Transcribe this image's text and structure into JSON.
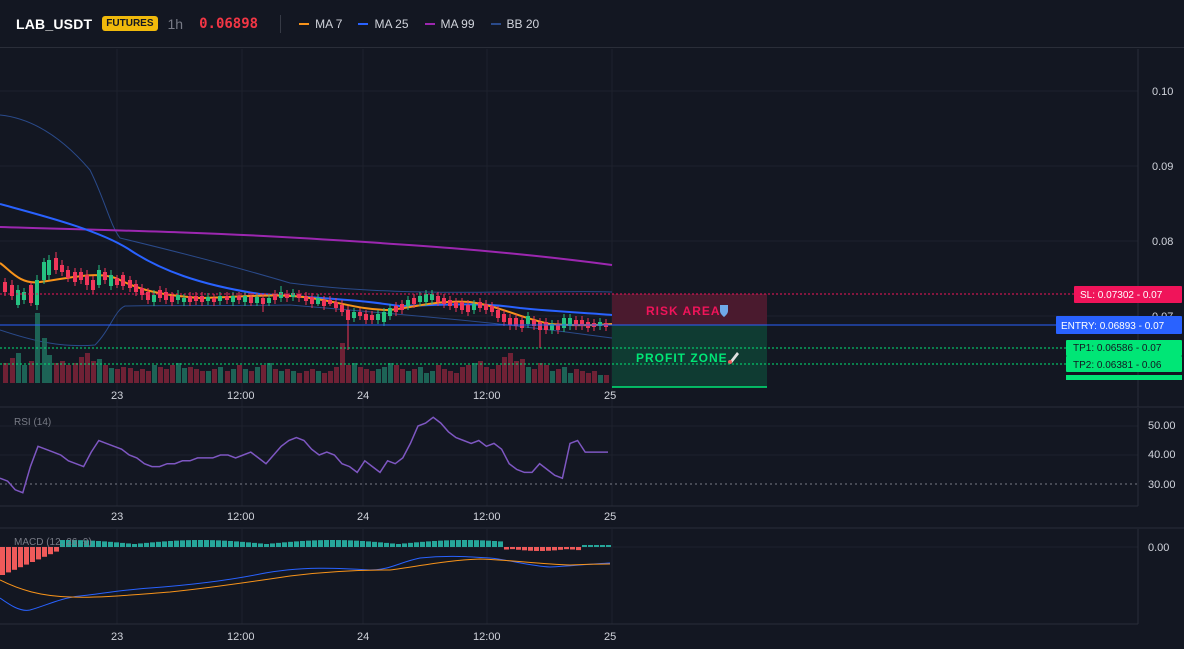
{
  "header": {
    "symbol": "LAB_USDT",
    "badge": "FUTURES",
    "timeframe": "1h",
    "price": "0.06898",
    "legend": [
      {
        "label": "MA 7",
        "color": "#f7931a"
      },
      {
        "label": "MA 25",
        "color": "#2962ff"
      },
      {
        "label": "MA 99",
        "color": "#9c27b0"
      },
      {
        "label": "BB 20",
        "color": "#2a4a8a"
      }
    ]
  },
  "main_pane": {
    "y_ticks": [
      "0.10",
      "0.09",
      "0.08",
      "0.07"
    ],
    "x_ticks": [
      "23",
      "12:00",
      "24",
      "12:00",
      "25"
    ],
    "zones": {
      "risk": "RISK AREA",
      "risk_icon": "shield-icon",
      "profit": "PROFIT ZONE",
      "profit_icon": "rocket-icon"
    },
    "tags": {
      "sl": "SL: 0.07302 - 0.07",
      "entry": "ENTRY: 0.06893 - 0.07",
      "tp1": "TP1: 0.06586 - 0.07",
      "tp2": "TP2: 0.06381 - 0.06"
    },
    "colors": {
      "up": "#26c281",
      "down": "#f0365a",
      "sl": "#f0145a",
      "entry": "#2962ff",
      "tp": "#00e676"
    }
  },
  "rsi_pane": {
    "label": "RSI (14)",
    "y_ticks": [
      "50.00",
      "40.00",
      "30.00"
    ],
    "x_ticks": [
      "23",
      "12:00",
      "24",
      "12:00",
      "25"
    ],
    "color": "#7e57c2",
    "values": [
      32,
      31,
      28,
      27,
      36,
      43,
      42,
      41,
      40,
      38,
      37,
      36,
      41,
      45,
      44,
      43,
      42,
      40,
      39,
      37,
      36,
      36,
      37,
      37,
      38,
      38,
      39,
      39,
      39,
      40,
      40,
      39,
      40,
      41,
      39,
      37,
      40,
      43,
      45,
      46,
      45,
      42,
      40,
      41,
      40,
      37,
      36,
      34,
      38,
      36,
      34,
      38,
      37,
      39,
      44,
      50,
      51,
      53,
      51,
      48,
      46,
      45,
      44,
      45,
      43,
      44,
      42,
      37,
      35,
      34,
      34,
      37,
      35,
      33,
      32,
      44,
      45,
      41,
      41,
      41,
      41
    ]
  },
  "macd_pane": {
    "label": "MACD (12, 26, 9)",
    "y_ticks": [
      "0.00"
    ],
    "x_ticks": [
      "23",
      "12:00",
      "24",
      "12:00",
      "25"
    ]
  }
}
